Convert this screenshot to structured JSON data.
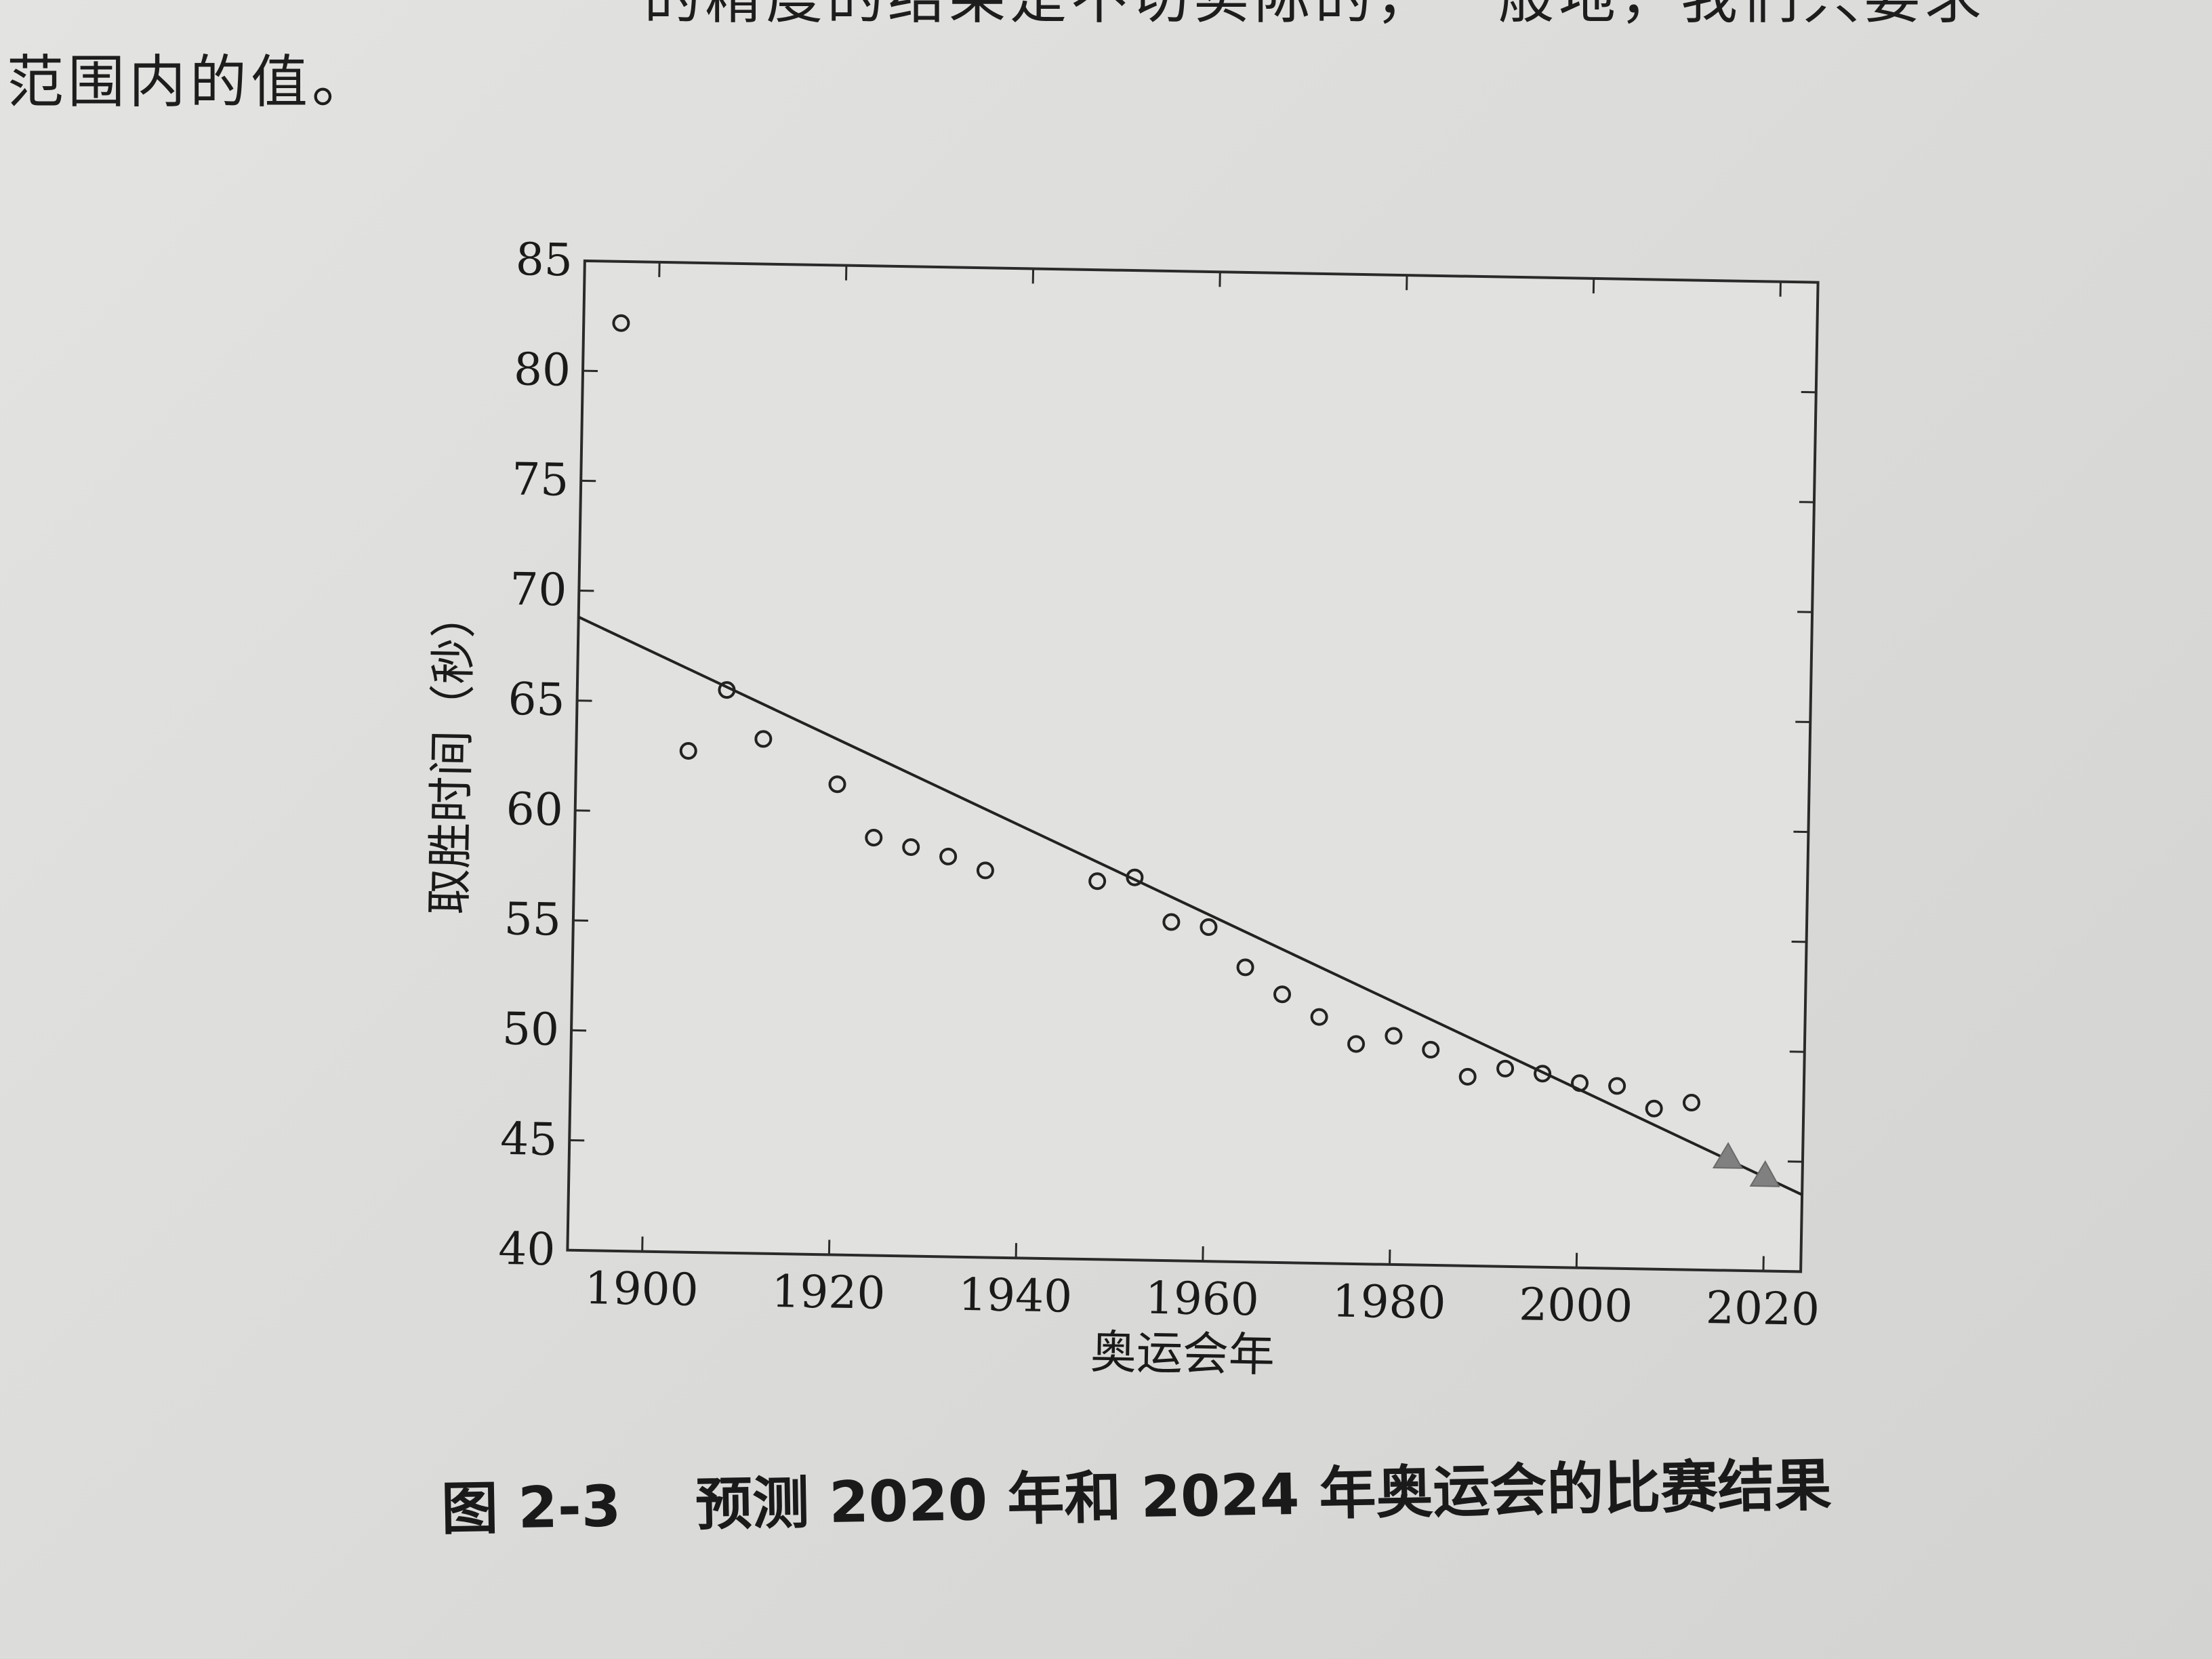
{
  "page_text": {
    "line1": "的精度的结果是不切实际的，一般地，我们只要求",
    "line2": "范围内的值。"
  },
  "caption": {
    "number": "图 2-3",
    "text": "预测 2020 年和 2024 年奥运会的比赛结果"
  },
  "chart_data": {
    "type": "scatter",
    "title": "",
    "xlabel": "奥运会年",
    "ylabel": "取胜时间（秒）",
    "xlim": [
      1892,
      2024
    ],
    "ylim": [
      40,
      85
    ],
    "xticks": [
      1900,
      1920,
      1940,
      1960,
      1980,
      2000,
      2020
    ],
    "yticks": [
      40,
      45,
      50,
      55,
      60,
      65,
      70,
      75,
      80,
      85
    ],
    "grid": false,
    "series": [
      {
        "marker": "circle-open",
        "points": [
          [
            1896,
            82.2
          ],
          [
            1904,
            62.8
          ],
          [
            1908,
            65.6
          ],
          [
            1912,
            63.4
          ],
          [
            1920,
            61.4
          ],
          [
            1924,
            59.0
          ],
          [
            1928,
            58.6
          ],
          [
            1932,
            58.2
          ],
          [
            1936,
            57.6
          ],
          [
            1948,
            57.2
          ],
          [
            1952,
            57.4
          ],
          [
            1956,
            55.4
          ],
          [
            1960,
            55.2
          ],
          [
            1964,
            53.4
          ],
          [
            1968,
            52.2
          ],
          [
            1972,
            51.2
          ],
          [
            1976,
            50.0
          ],
          [
            1980,
            50.4
          ],
          [
            1984,
            49.8
          ],
          [
            1988,
            48.6
          ],
          [
            1992,
            49.0
          ],
          [
            1996,
            48.8
          ],
          [
            2000,
            48.4
          ],
          [
            2004,
            48.3
          ],
          [
            2008,
            47.3
          ],
          [
            2012,
            47.6
          ]
        ]
      },
      {
        "marker": "triangle-filled",
        "color": "#808080",
        "points": [
          [
            2016,
            45.1
          ],
          [
            2020,
            44.3
          ]
        ]
      }
    ],
    "fit_line": {
      "x": [
        1892,
        2024
      ],
      "y": [
        68.8,
        43.5
      ]
    }
  }
}
